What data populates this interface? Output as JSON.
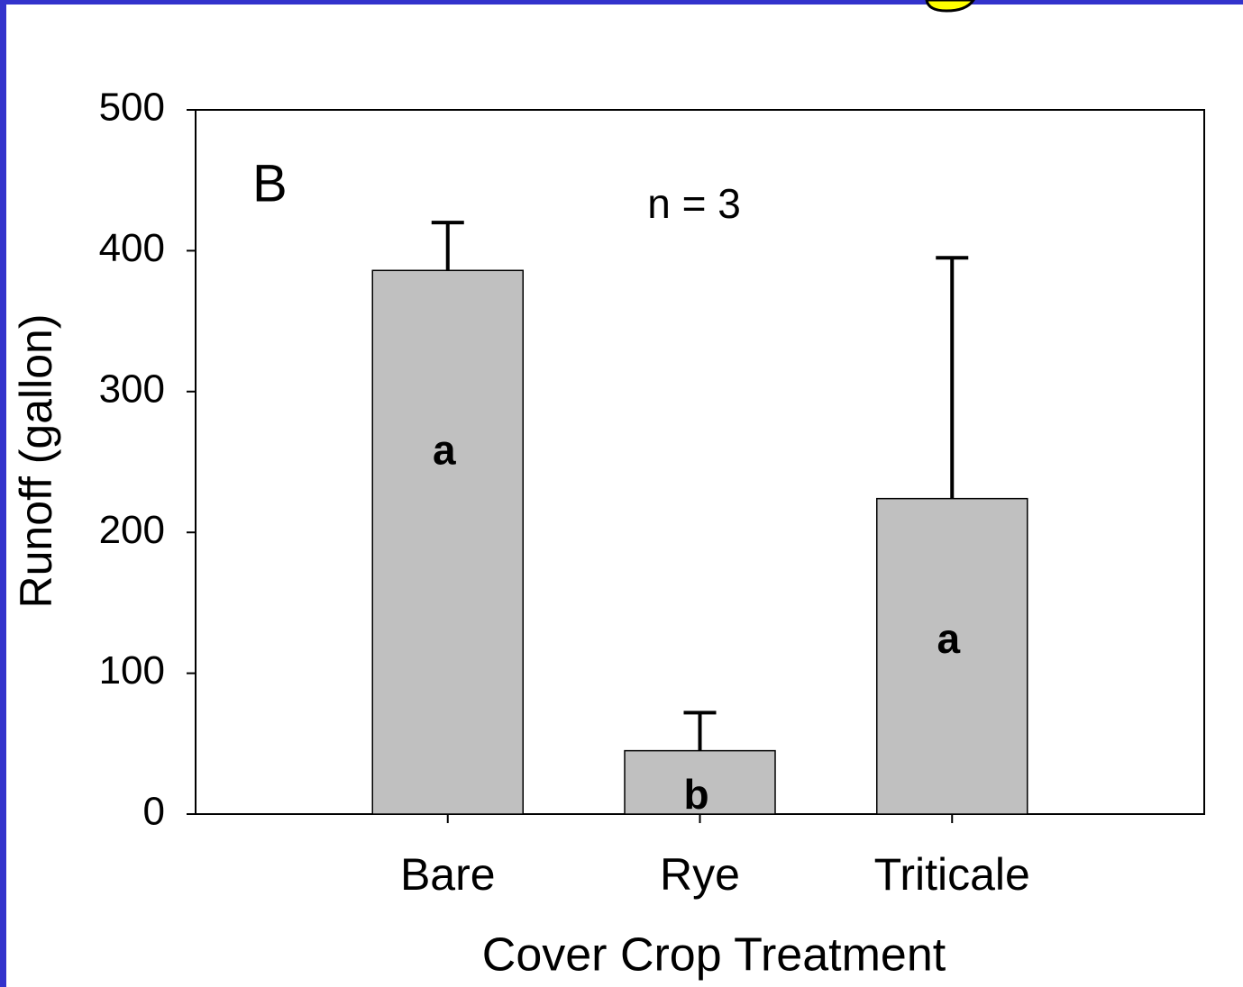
{
  "chart_data": {
    "type": "bar",
    "panel_label": "B",
    "annotation": "n = 3",
    "x_label": "Cover Crop Treatment",
    "y_label": "Runoff  (gallon)",
    "categories": [
      "Bare",
      "Rye",
      "Triticale"
    ],
    "values": [
      386,
      45,
      224
    ],
    "errors": [
      34,
      27,
      171
    ],
    "group_labels": [
      "a",
      "b",
      "a"
    ],
    "color": "#c0c0c0",
    "ylim": [
      0,
      500
    ],
    "yticks": [
      0,
      100,
      200,
      300,
      400,
      500
    ],
    "grid": false
  }
}
